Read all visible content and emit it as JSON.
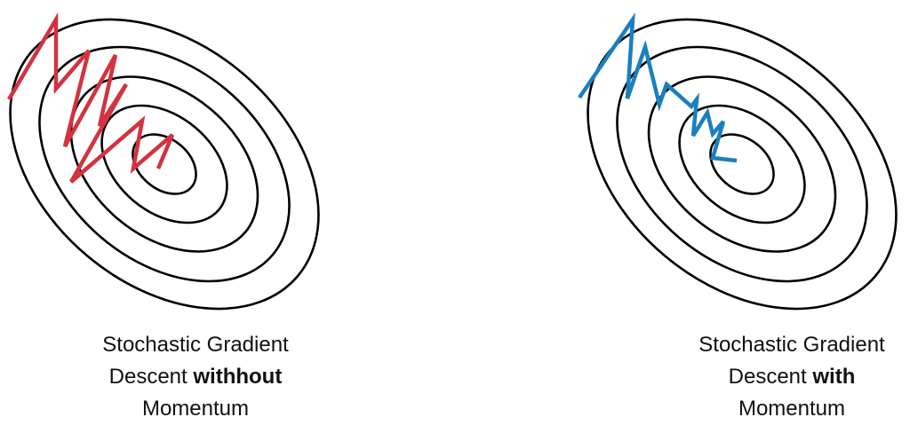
{
  "colors": {
    "contour": "#000000",
    "path_without_momentum": "#d1333f",
    "path_with_momentum": "#1a7fbf",
    "text": "#111111"
  },
  "panels": {
    "left": {
      "caption": {
        "line1": "Stochastic Gradient",
        "line2_prefix": "Descent ",
        "line2_bold": "withhout",
        "line3": "Momentum"
      },
      "contour_count": 5,
      "path_color_key": "path_without_momentum"
    },
    "right": {
      "caption": {
        "line1": "Stochastic Gradient",
        "line2_prefix": "Descent ",
        "line2_bold": "with",
        "line3": "Momentum"
      },
      "contour_count": 5,
      "path_color_key": "path_with_momentum"
    }
  }
}
